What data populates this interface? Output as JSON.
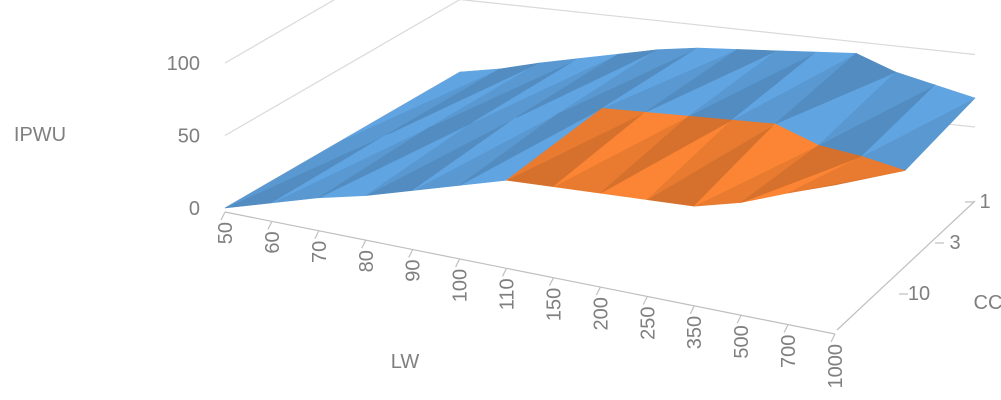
{
  "chart_data": {
    "type": "surface",
    "title": "",
    "zlabel": "IPWU",
    "xlabel": "LW",
    "ylabel": "CC",
    "zlim": [
      0,
      100
    ],
    "z_ticks": [
      "0",
      "50",
      "100"
    ],
    "x_categories": [
      "50",
      "60",
      "70",
      "80",
      "90",
      "100",
      "110",
      "150",
      "200",
      "250",
      "350",
      "500",
      "700",
      "1000"
    ],
    "y_tick_labels": [
      "1",
      "3",
      "10"
    ],
    "y_rows": 3,
    "bands": [
      {
        "range": [
          0,
          50
        ],
        "color": "#5b9bd5"
      },
      {
        "range": [
          50,
          100
        ],
        "color": "#ed7d31"
      }
    ],
    "series": [
      {
        "values": [
          0,
          10,
          20,
          28,
          38,
          48,
          58,
          60,
          62,
          64,
          66,
          75,
          88,
          100
        ]
      },
      {
        "values": [
          0,
          8,
          18,
          26,
          34,
          42,
          50,
          52,
          54,
          56,
          58,
          48,
          45,
          40
        ]
      },
      {
        "values": [
          0,
          5,
          12,
          18,
          24,
          30,
          34,
          36,
          38,
          40,
          42,
          32,
          26,
          20
        ]
      }
    ]
  }
}
